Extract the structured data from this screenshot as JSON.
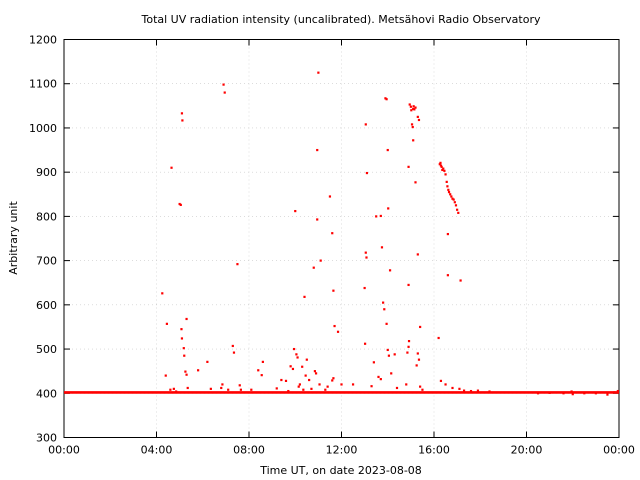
{
  "chart_data": {
    "type": "scatter",
    "title": "Total UV radiation intensity (uncalibrated). Metsähovi Radio Observatory",
    "xlabel": "Time UT, on date 2023-08-08",
    "ylabel": "Arbitrary unit",
    "xlim": [
      0,
      24
    ],
    "ylim": [
      300,
      1200
    ],
    "xticks": [
      {
        "value": 0,
        "label": "00:00"
      },
      {
        "value": 4,
        "label": "04:00"
      },
      {
        "value": 8,
        "label": "08:00"
      },
      {
        "value": 12,
        "label": "12:00"
      },
      {
        "value": 16,
        "label": "16:00"
      },
      {
        "value": 20,
        "label": "20:00"
      },
      {
        "value": 24,
        "label": "00:00"
      }
    ],
    "yticks": [
      300,
      400,
      500,
      600,
      700,
      800,
      900,
      1000,
      1100,
      1200
    ],
    "grid": true,
    "marker_color": "#ff0000",
    "baseline": {
      "x_start": 0,
      "x_end": 24,
      "value": 402
    },
    "points": [
      [
        4.25,
        626
      ],
      [
        4.45,
        557
      ],
      [
        4.4,
        440
      ],
      [
        4.6,
        408
      ],
      [
        4.65,
        910
      ],
      [
        4.75,
        410
      ],
      [
        4.85,
        404
      ],
      [
        5.0,
        828
      ],
      [
        5.05,
        826
      ],
      [
        5.1,
        1033
      ],
      [
        5.12,
        1017
      ],
      [
        5.08,
        545
      ],
      [
        5.1,
        524
      ],
      [
        5.18,
        502
      ],
      [
        5.2,
        485
      ],
      [
        5.25,
        449
      ],
      [
        5.3,
        442
      ],
      [
        5.3,
        568
      ],
      [
        5.35,
        412
      ],
      [
        5.8,
        452
      ],
      [
        6.2,
        471
      ],
      [
        6.35,
        410
      ],
      [
        6.8,
        412
      ],
      [
        6.85,
        420
      ],
      [
        6.9,
        1098
      ],
      [
        6.95,
        1080
      ],
      [
        7.1,
        408
      ],
      [
        7.3,
        507
      ],
      [
        7.35,
        492
      ],
      [
        7.5,
        692
      ],
      [
        7.6,
        418
      ],
      [
        7.65,
        408
      ],
      [
        8.1,
        408
      ],
      [
        8.4,
        452
      ],
      [
        8.6,
        471
      ],
      [
        8.55,
        441
      ],
      [
        9.2,
        411
      ],
      [
        9.4,
        430
      ],
      [
        9.6,
        428
      ],
      [
        9.7,
        405
      ],
      [
        9.8,
        461
      ],
      [
        9.9,
        455
      ],
      [
        9.95,
        500
      ],
      [
        10.0,
        812
      ],
      [
        10.05,
        488
      ],
      [
        10.1,
        481
      ],
      [
        10.15,
        415
      ],
      [
        10.2,
        420
      ],
      [
        10.3,
        460
      ],
      [
        10.35,
        408
      ],
      [
        10.4,
        618
      ],
      [
        10.45,
        440
      ],
      [
        10.5,
        476
      ],
      [
        10.6,
        430
      ],
      [
        10.7,
        410
      ],
      [
        10.8,
        684
      ],
      [
        10.85,
        450
      ],
      [
        10.9,
        445
      ],
      [
        10.95,
        950
      ],
      [
        11.0,
        1125
      ],
      [
        10.95,
        793
      ],
      [
        11.05,
        420
      ],
      [
        11.1,
        700
      ],
      [
        11.3,
        408
      ],
      [
        11.4,
        415
      ],
      [
        11.5,
        845
      ],
      [
        11.6,
        762
      ],
      [
        11.65,
        632
      ],
      [
        11.7,
        552
      ],
      [
        11.65,
        434
      ],
      [
        11.6,
        429
      ],
      [
        11.85,
        539
      ],
      [
        12.0,
        420
      ],
      [
        12.5,
        420
      ],
      [
        13.05,
        1008
      ],
      [
        13.1,
        898
      ],
      [
        13.05,
        718
      ],
      [
        13.08,
        707
      ],
      [
        13.0,
        638
      ],
      [
        13.02,
        512
      ],
      [
        13.3,
        416
      ],
      [
        13.4,
        470
      ],
      [
        13.5,
        800
      ],
      [
        13.7,
        801
      ],
      [
        13.75,
        730
      ],
      [
        13.8,
        605
      ],
      [
        13.85,
        590
      ],
      [
        13.6,
        437
      ],
      [
        13.7,
        432
      ],
      [
        13.9,
        1067
      ],
      [
        13.95,
        1065
      ],
      [
        14.0,
        950
      ],
      [
        14.02,
        818
      ],
      [
        13.95,
        557
      ],
      [
        14.0,
        498
      ],
      [
        14.05,
        485
      ],
      [
        14.1,
        678
      ],
      [
        14.15,
        445
      ],
      [
        14.3,
        488
      ],
      [
        14.4,
        412
      ],
      [
        14.8,
        420
      ],
      [
        14.85,
        492
      ],
      [
        14.9,
        505
      ],
      [
        14.92,
        518
      ],
      [
        14.9,
        645
      ],
      [
        14.9,
        912
      ],
      [
        14.95,
        1053
      ],
      [
        15.0,
        1048
      ],
      [
        15.02,
        1040
      ],
      [
        15.05,
        1008
      ],
      [
        15.08,
        1002
      ],
      [
        15.1,
        1043
      ],
      [
        15.12,
        1049
      ],
      [
        15.15,
        1042
      ],
      [
        15.2,
        1046
      ],
      [
        15.1,
        972
      ],
      [
        15.2,
        877
      ],
      [
        15.3,
        714
      ],
      [
        15.3,
        1025
      ],
      [
        15.35,
        1018
      ],
      [
        15.4,
        550
      ],
      [
        15.3,
        490
      ],
      [
        15.35,
        476
      ],
      [
        15.25,
        463
      ],
      [
        15.4,
        415
      ],
      [
        15.5,
        408
      ],
      [
        16.2,
        525
      ],
      [
        16.25,
        918
      ],
      [
        16.28,
        921
      ],
      [
        16.3,
        915
      ],
      [
        16.33,
        912
      ],
      [
        16.36,
        905
      ],
      [
        16.4,
        908
      ],
      [
        16.45,
        903
      ],
      [
        16.5,
        895
      ],
      [
        16.55,
        878
      ],
      [
        16.58,
        868
      ],
      [
        16.62,
        860
      ],
      [
        16.65,
        855
      ],
      [
        16.7,
        850
      ],
      [
        16.75,
        845
      ],
      [
        16.8,
        840
      ],
      [
        16.85,
        838
      ],
      [
        16.9,
        832
      ],
      [
        16.95,
        825
      ],
      [
        17.0,
        815
      ],
      [
        17.05,
        808
      ],
      [
        16.6,
        760
      ],
      [
        16.6,
        667
      ],
      [
        17.15,
        655
      ],
      [
        16.3,
        428
      ],
      [
        16.5,
        420
      ],
      [
        16.8,
        412
      ],
      [
        17.1,
        410
      ],
      [
        17.3,
        406
      ],
      [
        17.6,
        405
      ],
      [
        17.9,
        406
      ],
      [
        18.4,
        404
      ],
      [
        20.5,
        400
      ],
      [
        21.0,
        401
      ],
      [
        21.6,
        400
      ],
      [
        21.95,
        404
      ],
      [
        22.0,
        398
      ],
      [
        22.5,
        400
      ],
      [
        23.0,
        400
      ],
      [
        23.5,
        397
      ],
      [
        23.8,
        402
      ],
      [
        23.95,
        405
      ]
    ]
  }
}
